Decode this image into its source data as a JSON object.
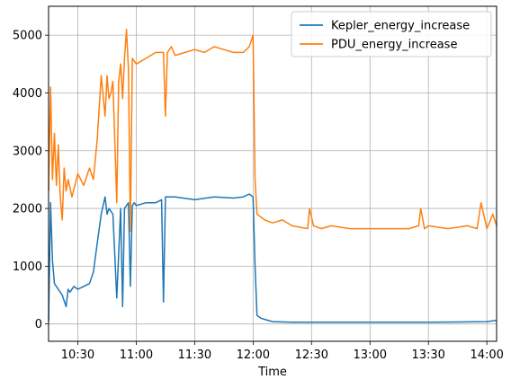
{
  "chart_data": {
    "type": "line",
    "title": "",
    "xlabel": "Time",
    "ylabel": "",
    "xlim": [
      "10:15",
      "14:05"
    ],
    "ylim": [
      -300,
      5500
    ],
    "grid": true,
    "legend": "top-right",
    "x_ticks": [
      "10:30",
      "11:00",
      "11:30",
      "12:00",
      "12:30",
      "13:00",
      "13:30",
      "14:00"
    ],
    "y_ticks": [
      0,
      1000,
      2000,
      3000,
      4000,
      5000
    ],
    "series": [
      {
        "name": "Kepler_energy_increase",
        "color": "#1f77b4",
        "x": [
          "10:15",
          "10:16",
          "10:17",
          "10:18",
          "10:20",
          "10:22",
          "10:24",
          "10:25",
          "10:26",
          "10:28",
          "10:30",
          "10:33",
          "10:36",
          "10:38",
          "10:40",
          "10:42",
          "10:44",
          "10:45",
          "10:46",
          "10:48",
          "10:50",
          "10:52",
          "10:53",
          "10:54",
          "10:55",
          "10:56",
          "10:57",
          "10:58",
          "10:59",
          "11:00",
          "11:05",
          "11:10",
          "11:13",
          "11:14",
          "11:15",
          "11:20",
          "11:30",
          "11:40",
          "11:50",
          "11:55",
          "11:58",
          "12:00",
          "12:01",
          "12:02",
          "12:04",
          "12:06",
          "12:10",
          "12:20",
          "12:30",
          "13:00",
          "13:30",
          "14:00",
          "14:05"
        ],
        "y": [
          50,
          2100,
          1100,
          700,
          600,
          500,
          300,
          600,
          550,
          650,
          600,
          650,
          700,
          900,
          1400,
          1900,
          2200,
          1900,
          2000,
          1900,
          450,
          2000,
          300,
          2000,
          2050,
          2100,
          650,
          2050,
          2100,
          2050,
          2100,
          2100,
          2150,
          380,
          2200,
          2200,
          2150,
          2200,
          2180,
          2200,
          2250,
          2200,
          1000,
          150,
          100,
          80,
          40,
          30,
          30,
          30,
          30,
          40,
          60
        ]
      },
      {
        "name": "PDU_energy_increase",
        "color": "#ff7f0e",
        "x": [
          "10:15",
          "10:16",
          "10:17",
          "10:18",
          "10:19",
          "10:20",
          "10:21",
          "10:22",
          "10:23",
          "10:24",
          "10:25",
          "10:27",
          "10:30",
          "10:33",
          "10:36",
          "10:38",
          "10:40",
          "10:42",
          "10:44",
          "10:45",
          "10:46",
          "10:47",
          "10:48",
          "10:50",
          "10:51",
          "10:52",
          "10:53",
          "10:54",
          "10:55",
          "10:56",
          "10:57",
          "10:58",
          "11:00",
          "11:05",
          "11:10",
          "11:14",
          "11:15",
          "11:16",
          "11:18",
          "11:20",
          "11:25",
          "11:30",
          "11:35",
          "11:40",
          "11:45",
          "11:50",
          "11:55",
          "11:58",
          "12:00",
          "12:01",
          "12:02",
          "12:04",
          "12:06",
          "12:10",
          "12:15",
          "12:20",
          "12:28",
          "12:29",
          "12:31",
          "12:35",
          "12:40",
          "12:50",
          "13:00",
          "13:10",
          "13:20",
          "13:25",
          "13:26",
          "13:28",
          "13:30",
          "13:40",
          "13:50",
          "13:55",
          "13:57",
          "14:00",
          "14:03",
          "14:05"
        ],
        "y": [
          2300,
          4100,
          2500,
          3300,
          2400,
          3100,
          2200,
          1800,
          2700,
          2300,
          2500,
          2200,
          2600,
          2400,
          2700,
          2500,
          3200,
          4300,
          3600,
          4300,
          3900,
          4000,
          4200,
          2100,
          4200,
          4500,
          3900,
          4600,
          5100,
          4400,
          1600,
          4600,
          4500,
          4600,
          4700,
          4700,
          3600,
          4700,
          4800,
          4650,
          4700,
          4750,
          4700,
          4800,
          4750,
          4700,
          4700,
          4800,
          5000,
          2500,
          1900,
          1850,
          1800,
          1750,
          1800,
          1700,
          1650,
          2000,
          1700,
          1650,
          1700,
          1650,
          1650,
          1650,
          1650,
          1700,
          2000,
          1650,
          1700,
          1650,
          1700,
          1650,
          2100,
          1650,
          1900,
          1700
        ]
      }
    ]
  }
}
